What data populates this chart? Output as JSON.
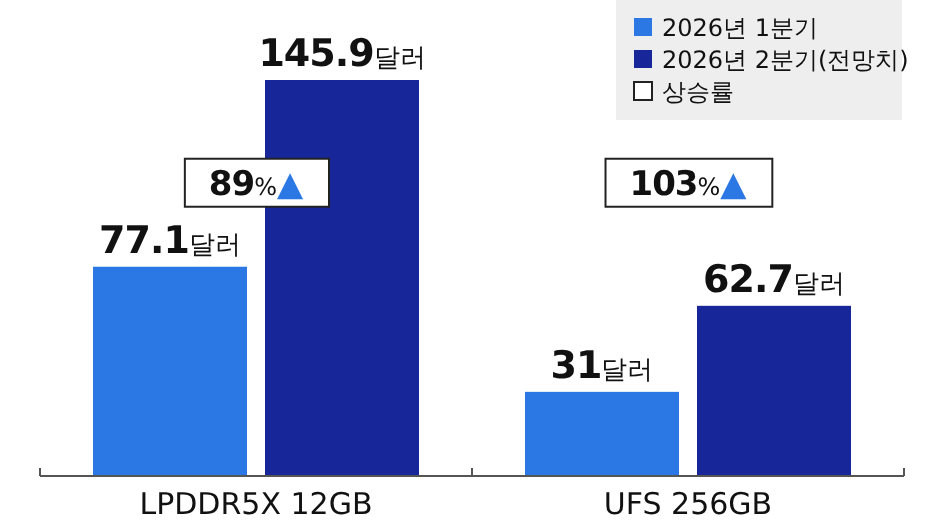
{
  "chart_data": {
    "type": "bar",
    "categories": [
      "LPDDR5X 12GB",
      "UFS 256GB"
    ],
    "series": [
      {
        "name": "2026년 1분기",
        "color": "#2b78e4",
        "values": [
          77.1,
          31
        ],
        "value_labels": [
          "77.1달러",
          "31달러"
        ]
      },
      {
        "name": "2026년 2분기(전망치)",
        "color": "#17279a",
        "values": [
          145.9,
          62.7
        ],
        "value_labels": [
          "145.9달러",
          "62.7달러"
        ]
      }
    ],
    "annotations": [
      "89%▲",
      "103%▲",
      "상승률"
    ],
    "legend": "top right",
    "tick_labels": "x"
  }
}
